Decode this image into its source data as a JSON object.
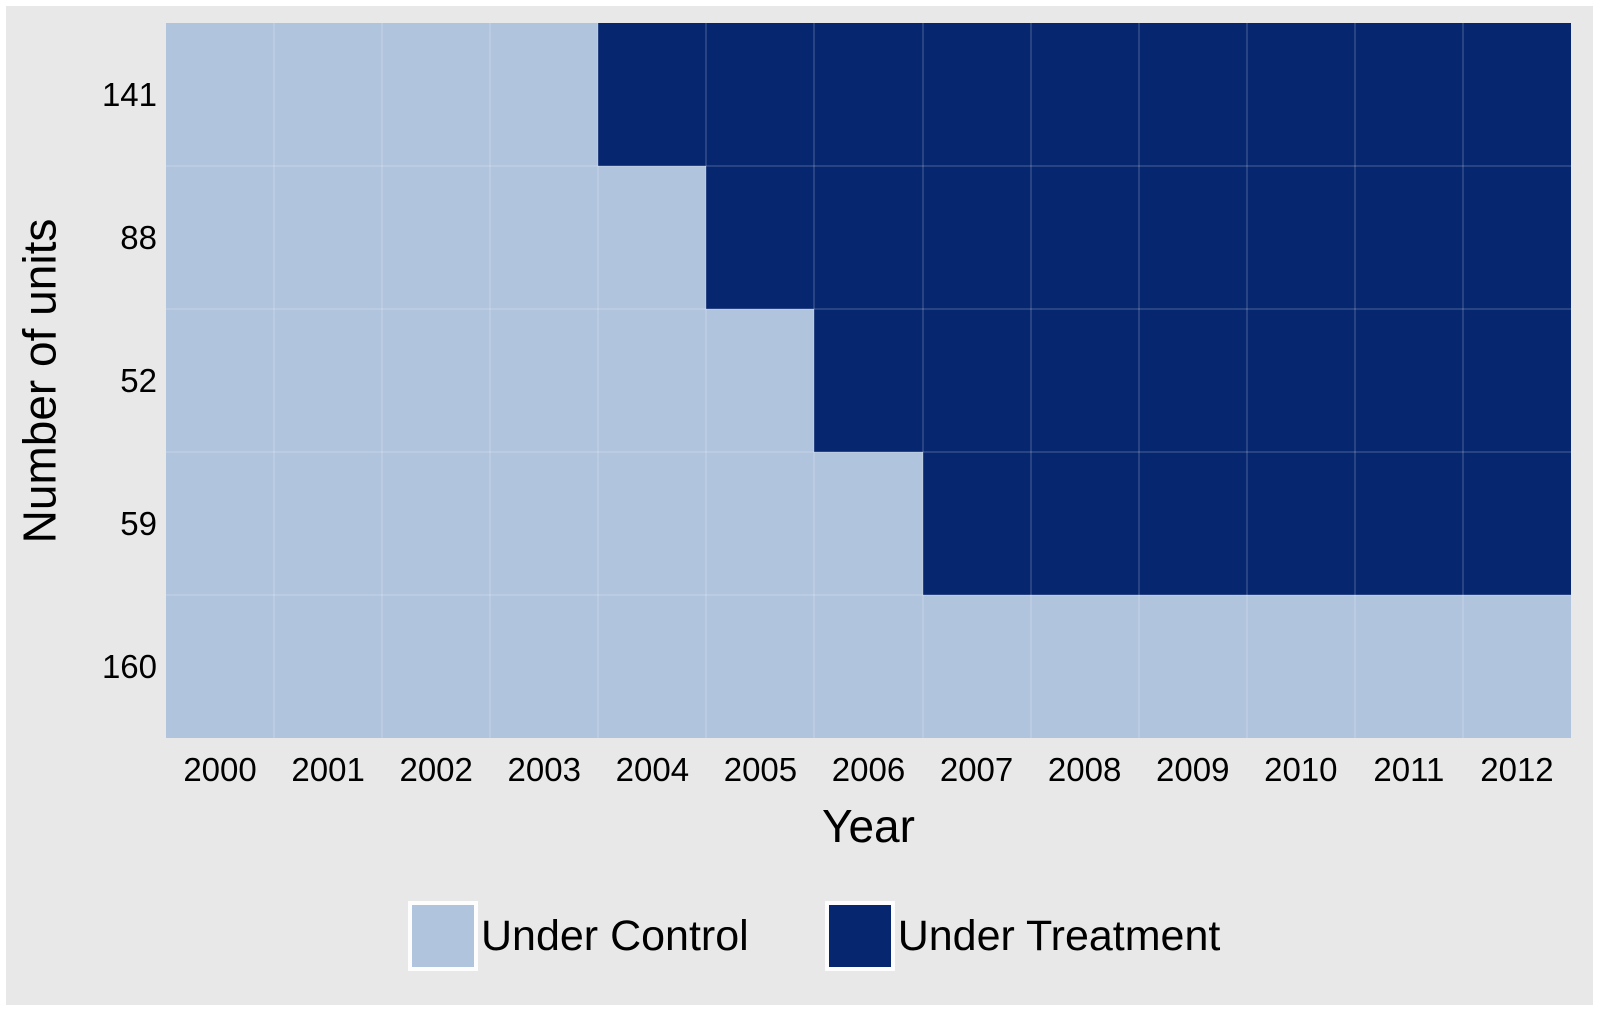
{
  "chart_data": {
    "type": "heatmap",
    "title": "",
    "xlabel": "Year",
    "ylabel": "Number of units",
    "x_categories": [
      "2000",
      "2001",
      "2002",
      "2003",
      "2004",
      "2005",
      "2006",
      "2007",
      "2008",
      "2009",
      "2010",
      "2011",
      "2012"
    ],
    "rows": [
      {
        "label": "141",
        "treatment_start": "2004"
      },
      {
        "label": "88",
        "treatment_start": "2005"
      },
      {
        "label": "52",
        "treatment_start": "2006"
      },
      {
        "label": "59",
        "treatment_start": "2007"
      },
      {
        "label": "160",
        "treatment_start": null
      }
    ],
    "legend": [
      {
        "label": "Under Control",
        "status": "control"
      },
      {
        "label": "Under Treatment",
        "status": "treatment"
      }
    ],
    "colors": {
      "control": "#B0C4DE",
      "treatment": "#06266F",
      "background": "#E8E8E8",
      "grid": "rgba(255,255,255,0.14)"
    },
    "layout": {
      "grid": "on",
      "legend_position": "bottom"
    }
  }
}
